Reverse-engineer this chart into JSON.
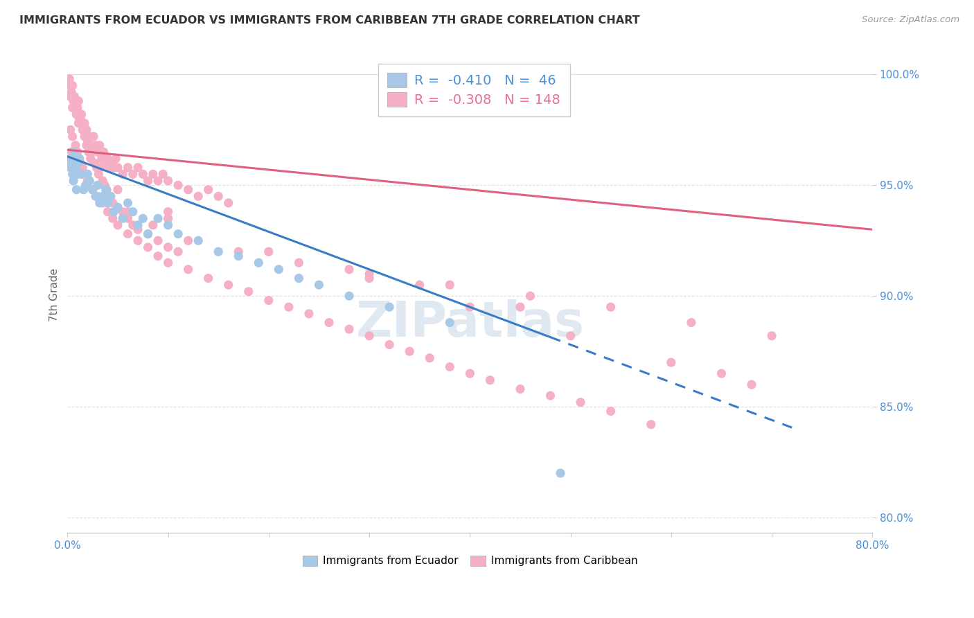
{
  "title": "IMMIGRANTS FROM ECUADOR VS IMMIGRANTS FROM CARIBBEAN 7TH GRADE CORRELATION CHART",
  "source": "Source: ZipAtlas.com",
  "ylabel": "7th Grade",
  "xlim": [
    0.0,
    0.8
  ],
  "ylim": [
    0.793,
    1.008
  ],
  "xticks": [
    0.0,
    0.1,
    0.2,
    0.3,
    0.4,
    0.5,
    0.6,
    0.7,
    0.8
  ],
  "xtick_labels": [
    "0.0%",
    "",
    "",
    "",
    "",
    "",
    "",
    "",
    "80.0%"
  ],
  "yticks": [
    0.8,
    0.85,
    0.9,
    0.95,
    1.0
  ],
  "ytick_labels": [
    "80.0%",
    "85.0%",
    "90.0%",
    "95.0%",
    "100.0%"
  ],
  "ecuador_color": "#a8c8e8",
  "caribbean_color": "#f5b0c5",
  "ecuador_R": -0.41,
  "ecuador_N": 46,
  "caribbean_R": -0.308,
  "caribbean_N": 148,
  "ecuador_line_x0": 0.0,
  "ecuador_line_y0": 0.963,
  "ecuador_line_x1": 0.5,
  "ecuador_line_y1": 0.878,
  "ecuador_line_solid_end": 0.48,
  "ecuador_line_dashed_end": 0.72,
  "caribbean_line_x0": 0.0,
  "caribbean_line_y0": 0.966,
  "caribbean_line_x1": 0.8,
  "caribbean_line_y1": 0.93,
  "ecuador_scatter_x": [
    0.002,
    0.003,
    0.004,
    0.005,
    0.006,
    0.007,
    0.008,
    0.009,
    0.01,
    0.011,
    0.012,
    0.014,
    0.016,
    0.018,
    0.02,
    0.022,
    0.025,
    0.028,
    0.03,
    0.032,
    0.035,
    0.038,
    0.04,
    0.043,
    0.046,
    0.05,
    0.055,
    0.06,
    0.065,
    0.07,
    0.075,
    0.08,
    0.09,
    0.1,
    0.11,
    0.13,
    0.15,
    0.17,
    0.19,
    0.21,
    0.23,
    0.25,
    0.28,
    0.32,
    0.38,
    0.49
  ],
  "ecuador_scatter_y": [
    0.96,
    0.958,
    0.962,
    0.955,
    0.952,
    0.965,
    0.958,
    0.948,
    0.955,
    0.96,
    0.962,
    0.955,
    0.948,
    0.95,
    0.955,
    0.952,
    0.948,
    0.945,
    0.95,
    0.942,
    0.945,
    0.948,
    0.942,
    0.945,
    0.938,
    0.94,
    0.935,
    0.942,
    0.938,
    0.932,
    0.935,
    0.928,
    0.935,
    0.932,
    0.928,
    0.925,
    0.92,
    0.918,
    0.915,
    0.912,
    0.908,
    0.905,
    0.9,
    0.895,
    0.888,
    0.82
  ],
  "caribbean_scatter_x": [
    0.002,
    0.003,
    0.004,
    0.005,
    0.006,
    0.007,
    0.008,
    0.009,
    0.01,
    0.011,
    0.012,
    0.013,
    0.014,
    0.015,
    0.016,
    0.017,
    0.018,
    0.019,
    0.02,
    0.022,
    0.024,
    0.026,
    0.028,
    0.03,
    0.032,
    0.034,
    0.036,
    0.038,
    0.04,
    0.042,
    0.044,
    0.046,
    0.048,
    0.05,
    0.055,
    0.06,
    0.065,
    0.07,
    0.075,
    0.08,
    0.085,
    0.09,
    0.095,
    0.1,
    0.11,
    0.12,
    0.13,
    0.14,
    0.15,
    0.16,
    0.003,
    0.005,
    0.007,
    0.009,
    0.011,
    0.013,
    0.015,
    0.017,
    0.019,
    0.021,
    0.023,
    0.025,
    0.027,
    0.029,
    0.031,
    0.033,
    0.035,
    0.037,
    0.039,
    0.041,
    0.045,
    0.05,
    0.055,
    0.06,
    0.065,
    0.07,
    0.08,
    0.09,
    0.1,
    0.11,
    0.003,
    0.005,
    0.008,
    0.01,
    0.013,
    0.015,
    0.018,
    0.02,
    0.025,
    0.03,
    0.035,
    0.04,
    0.045,
    0.05,
    0.06,
    0.07,
    0.08,
    0.09,
    0.1,
    0.12,
    0.14,
    0.16,
    0.18,
    0.2,
    0.22,
    0.24,
    0.26,
    0.28,
    0.3,
    0.32,
    0.34,
    0.36,
    0.38,
    0.4,
    0.42,
    0.45,
    0.48,
    0.51,
    0.54,
    0.58,
    0.004,
    0.008,
    0.015,
    0.025,
    0.04,
    0.06,
    0.085,
    0.12,
    0.17,
    0.23,
    0.3,
    0.38,
    0.46,
    0.54,
    0.62,
    0.7,
    0.01,
    0.05,
    0.1,
    0.2,
    0.3,
    0.4,
    0.5,
    0.6,
    0.65,
    0.68,
    0.1,
    0.28,
    0.35,
    0.45
  ],
  "caribbean_scatter_y": [
    0.998,
    0.995,
    0.992,
    0.995,
    0.988,
    0.99,
    0.985,
    0.982,
    0.985,
    0.988,
    0.98,
    0.978,
    0.982,
    0.978,
    0.975,
    0.978,
    0.972,
    0.975,
    0.97,
    0.972,
    0.968,
    0.972,
    0.968,
    0.965,
    0.968,
    0.962,
    0.965,
    0.96,
    0.962,
    0.958,
    0.96,
    0.958,
    0.962,
    0.958,
    0.955,
    0.958,
    0.955,
    0.958,
    0.955,
    0.952,
    0.955,
    0.952,
    0.955,
    0.952,
    0.95,
    0.948,
    0.945,
    0.948,
    0.945,
    0.942,
    0.99,
    0.985,
    0.988,
    0.982,
    0.978,
    0.98,
    0.975,
    0.972,
    0.968,
    0.965,
    0.962,
    0.965,
    0.96,
    0.958,
    0.955,
    0.958,
    0.952,
    0.95,
    0.948,
    0.945,
    0.942,
    0.94,
    0.938,
    0.935,
    0.932,
    0.93,
    0.928,
    0.925,
    0.922,
    0.92,
    0.975,
    0.972,
    0.968,
    0.965,
    0.96,
    0.958,
    0.955,
    0.952,
    0.948,
    0.945,
    0.942,
    0.938,
    0.935,
    0.932,
    0.928,
    0.925,
    0.922,
    0.918,
    0.915,
    0.912,
    0.908,
    0.905,
    0.902,
    0.898,
    0.895,
    0.892,
    0.888,
    0.885,
    0.882,
    0.878,
    0.875,
    0.872,
    0.868,
    0.865,
    0.862,
    0.858,
    0.855,
    0.852,
    0.848,
    0.842,
    0.965,
    0.96,
    0.955,
    0.948,
    0.942,
    0.938,
    0.932,
    0.925,
    0.92,
    0.915,
    0.91,
    0.905,
    0.9,
    0.895,
    0.888,
    0.882,
    0.962,
    0.948,
    0.935,
    0.92,
    0.908,
    0.895,
    0.882,
    0.87,
    0.865,
    0.86,
    0.938,
    0.912,
    0.905,
    0.895
  ],
  "watermark": "ZIPatlas",
  "background_color": "#ffffff",
  "grid_color": "#e0e0e0"
}
